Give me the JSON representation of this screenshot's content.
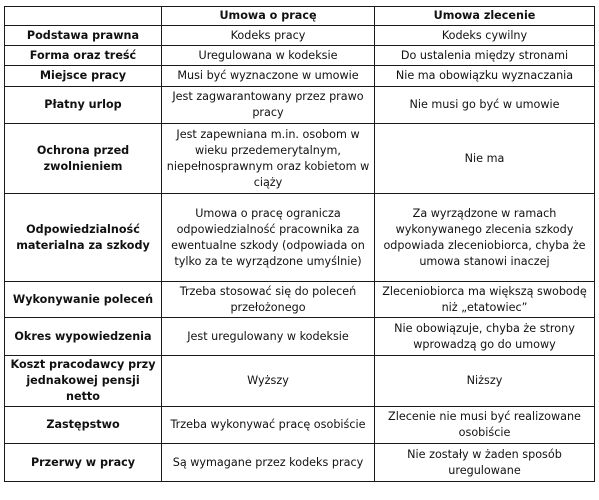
{
  "table": {
    "headers": [
      "",
      "Umowa o pracę",
      "Umowa zlecenie"
    ],
    "rows": [
      {
        "label": "Podstawa prawna",
        "a": "Kodeks pracy",
        "b": "Kodeks cywilny"
      },
      {
        "label": "Forma oraz treść",
        "a": "Uregulowana w kodeksie",
        "b": "Do ustalenia między stronami"
      },
      {
        "label": "Miejsce pracy",
        "a": "Musi być wyznaczone w umowie",
        "b": "Nie ma obowiązku wyznaczania"
      },
      {
        "label": "Płatny urlop",
        "a": "Jest zagwarantowany przez prawo pracy",
        "b": "Nie musi go być w umowie"
      },
      {
        "label": "Ochrona przed zwolnieniem",
        "a": "Jest zapewniana m.in. osobom w wieku przedemerytalnym, niepełnosprawnym oraz kobietom w ciąży",
        "b": "Nie ma"
      },
      {
        "label": "Odpowiedzialność materialna za szkody",
        "a": "Umowa o pracę ogranicza odpowiedzialność pracownika za ewentualne szkody (odpowiada on tylko za te wyrządzone umyślnie)",
        "b": "Za wyrządzone w ramach wykonywanego zlecenia szkody odpowiada zleceniobiorca, chyba że umowa stanowi inaczej"
      },
      {
        "label": "Wykonywanie poleceń",
        "a": "Trzeba stosować się do poleceń przełożonego",
        "b": "Zleceniobiorca ma większą swobodę niż „etatowiec”"
      },
      {
        "label": "Okres wypowiedzenia",
        "a": "Jest uregulowany w kodeksie",
        "b": "Nie obowiązuje, chyba że strony wprowadzą go do umowy"
      },
      {
        "label": "Koszt pracodawcy przy jednakowej pensji netto",
        "a": "Wyższy",
        "b": "Niższy"
      },
      {
        "label": "Zastępstwo",
        "a": "Trzeba wykonywać pracę osobiście",
        "b": "Zlecenie nie musi być realizowane osobiście"
      },
      {
        "label": "Przerwy w pracy",
        "a": "Są wymagane przez kodeks pracy",
        "b": "Nie zostały w żaden sposób uregulowane"
      }
    ]
  }
}
